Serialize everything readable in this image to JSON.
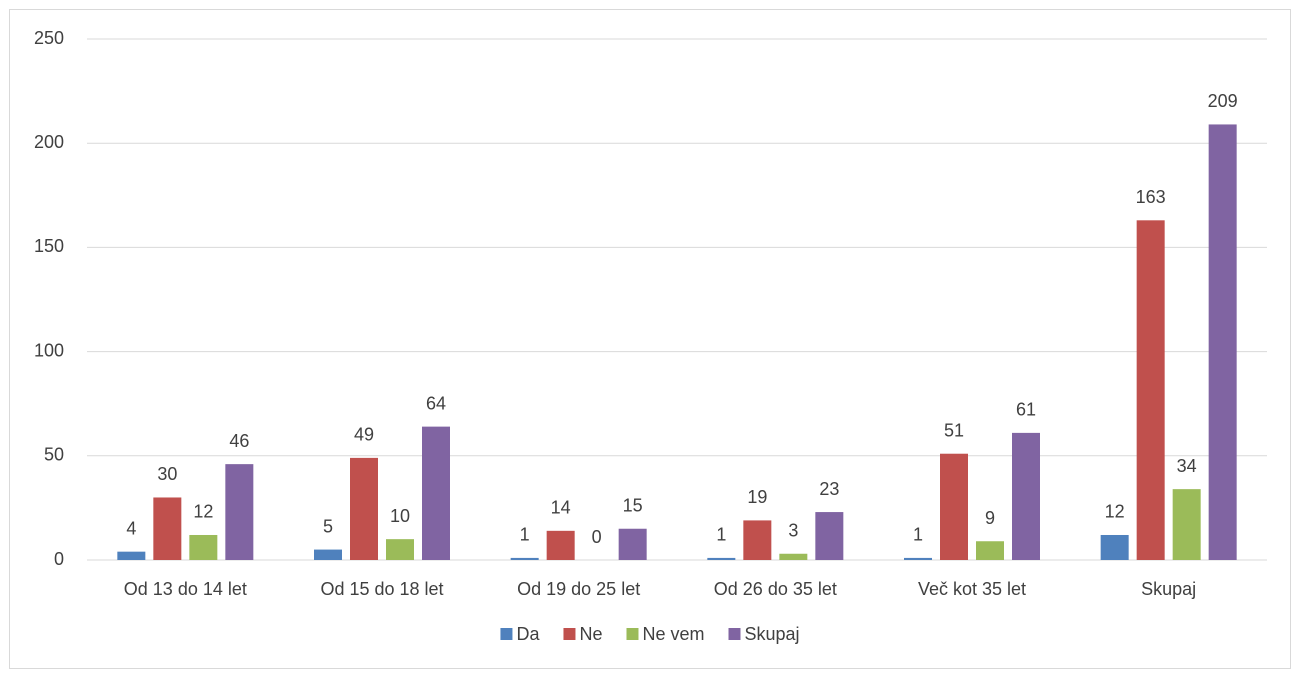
{
  "chart_data": {
    "type": "bar",
    "categories": [
      "Od 13 do 14 let",
      "Od 15 do 18 let",
      "Od 19 do 25 let",
      "Od 26 do 35 let",
      "Več kot 35 let",
      "Skupaj"
    ],
    "series": [
      {
        "name": "Da",
        "color": "#4f81bd",
        "values": [
          4,
          5,
          1,
          1,
          1,
          12
        ]
      },
      {
        "name": "Ne",
        "color": "#c0504d",
        "values": [
          30,
          49,
          14,
          19,
          51,
          163
        ]
      },
      {
        "name": "Ne vem",
        "color": "#9bbb59",
        "values": [
          12,
          10,
          0,
          3,
          9,
          34
        ]
      },
      {
        "name": "Skupaj",
        "color": "#8064a2",
        "values": [
          46,
          64,
          15,
          23,
          61,
          209
        ]
      }
    ],
    "ylim": [
      0,
      250
    ],
    "yticks": [
      0,
      50,
      100,
      150,
      200,
      250
    ],
    "grid": true,
    "legend": "bottom"
  }
}
